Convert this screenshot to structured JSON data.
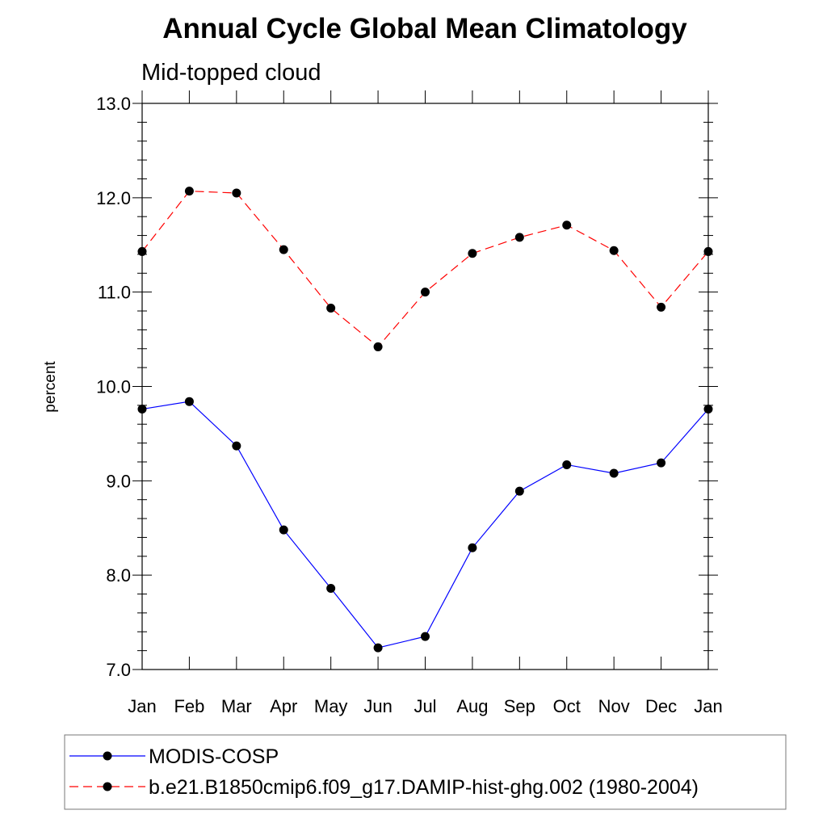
{
  "chart_data": {
    "type": "line",
    "title": "Annual Cycle Global Mean Climatology",
    "subtitle": "Mid-topped cloud",
    "xlabel": "",
    "ylabel": "percent",
    "categories": [
      "Jan",
      "Feb",
      "Mar",
      "Apr",
      "May",
      "Jun",
      "Jul",
      "Aug",
      "Sep",
      "Oct",
      "Nov",
      "Dec",
      "Jan"
    ],
    "ylim": [
      7.0,
      13.0
    ],
    "yticks": [
      "7.0",
      "8.0",
      "9.0",
      "10.0",
      "11.0",
      "12.0",
      "13.0"
    ],
    "grid": false,
    "legend_position": "bottom",
    "series": [
      {
        "name": "MODIS-COSP",
        "color": "#0000ff",
        "style": "solid",
        "values": [
          9.76,
          9.84,
          9.37,
          8.48,
          7.86,
          7.23,
          7.35,
          8.29,
          8.89,
          9.17,
          9.08,
          9.19,
          9.76
        ]
      },
      {
        "name": "b.e21.B1850cmip6.f09_g17.DAMIP-hist-ghg.002 (1980-2004)",
        "color": "#ff0000",
        "style": "dashed",
        "values": [
          11.43,
          12.07,
          12.05,
          11.45,
          10.83,
          10.42,
          11.0,
          11.41,
          11.58,
          11.71,
          11.44,
          10.84,
          11.43
        ]
      }
    ]
  }
}
